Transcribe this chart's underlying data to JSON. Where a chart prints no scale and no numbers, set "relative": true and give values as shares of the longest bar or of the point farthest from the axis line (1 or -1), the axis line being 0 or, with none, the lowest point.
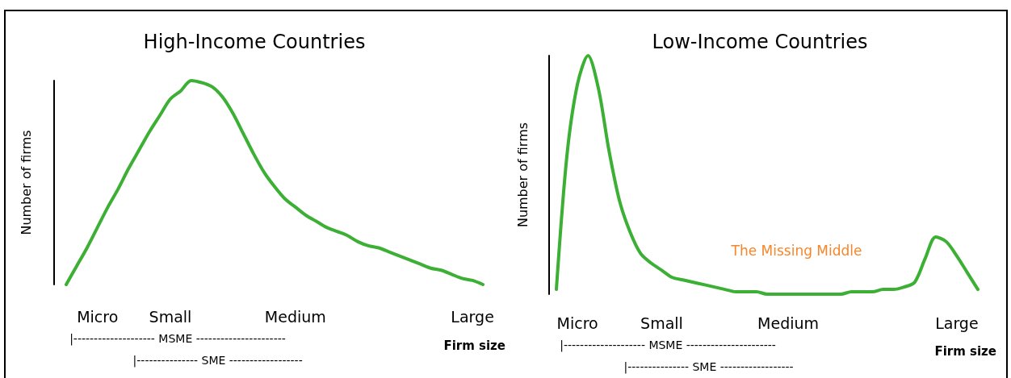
{
  "chart_data": [
    {
      "type": "line",
      "title": "High-Income Countries",
      "ylabel": "Number of firms",
      "xlabel": "Firm size",
      "relative": true,
      "marker": "none",
      "color": "#3cb034",
      "categories": [
        null,
        null,
        null,
        "Micro",
        null,
        null,
        null,
        null,
        null,
        null,
        "Small",
        null,
        null,
        null,
        null,
        null,
        null,
        null,
        null,
        null,
        null,
        null,
        "Medium",
        null,
        null,
        null,
        null,
        null,
        null,
        null,
        null,
        null,
        null,
        null,
        null,
        null,
        null,
        null,
        null,
        "Large",
        null
      ],
      "values": [
        0,
        0.09,
        0.18,
        0.28,
        0.38,
        0.47,
        0.57,
        0.66,
        0.75,
        0.83,
        0.91,
        0.95,
        1,
        0.99,
        0.97,
        0.92,
        0.84,
        0.74,
        0.64,
        0.55,
        0.48,
        0.42,
        0.38,
        0.34,
        0.31,
        0.28,
        0.26,
        0.24,
        0.21,
        0.19,
        0.18,
        0.16,
        0.14,
        0.12,
        0.1,
        0.08,
        0.07,
        0.05,
        0.03,
        0.02,
        0
      ],
      "annotations": [
        "|-------------------- MSME ----------------------",
        "|--------------- SME ------------------"
      ]
    },
    {
      "type": "line",
      "title": "Low-Income Countries",
      "ylabel": "Number of firms",
      "xlabel": "Firm size",
      "relative": true,
      "marker": "none",
      "color": "#3cb034",
      "categories": [
        null,
        null,
        "Micro",
        null,
        null,
        null,
        null,
        null,
        null,
        null,
        "Small",
        null,
        null,
        null,
        null,
        null,
        null,
        null,
        null,
        null,
        null,
        null,
        "Medium",
        null,
        null,
        null,
        null,
        null,
        null,
        null,
        null,
        null,
        null,
        null,
        null,
        null,
        null,
        null,
        "Large",
        null,
        null
      ],
      "values": [
        0.02,
        0.58,
        0.88,
        1,
        0.86,
        0.6,
        0.39,
        0.26,
        0.17,
        0.13,
        0.1,
        0.07,
        0.06,
        0.05,
        0.04,
        0.03,
        0.02,
        0.01,
        0.01,
        0.01,
        0,
        0,
        0,
        0,
        0,
        0,
        0,
        0,
        0.01,
        0.01,
        0.01,
        0.02,
        0.02,
        0.03,
        0.05,
        0.15,
        0.24,
        0.22,
        0.16,
        0.09,
        0.02
      ],
      "annotations": [
        "|-------------------- MSME ----------------------",
        "|--------------- SME ------------------",
        "The Missing Middle"
      ]
    }
  ]
}
